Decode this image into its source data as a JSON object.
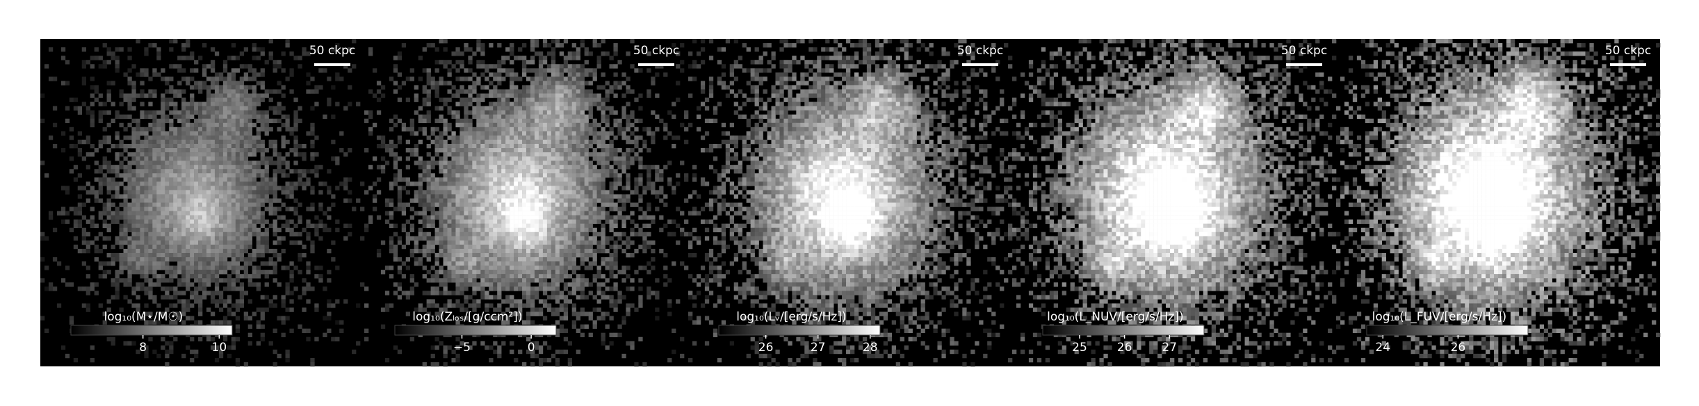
{
  "chart_data": [
    {
      "type": "image",
      "scale_bar": "50 ckpc",
      "colorbar": {
        "label": "log₁₀(M⋆/M☉)",
        "xlim": [
          6.11,
          10.34
        ],
        "xticks": [
          8,
          10
        ]
      }
    },
    {
      "type": "image",
      "scale_bar": "50 ckpc",
      "colorbar": {
        "label": "log₁₀(Zₗₒₛ/[g/ccm²])",
        "xlim": [
          -9.84,
          1.8
        ],
        "xticks": [
          {
            "value": -5,
            "label": "−5"
          },
          0
        ]
      }
    },
    {
      "type": "image",
      "scale_bar": "50 ckpc",
      "colorbar": {
        "label": "log₁₀(Lᵥ/[erg/s/Hz])",
        "xlim": [
          25.1,
          28.19
        ],
        "xticks": [
          26,
          27,
          28
        ]
      }
    },
    {
      "type": "image",
      "scale_bar": "50 ckpc",
      "colorbar": {
        "label": "log₁₀(L_NUV/[erg/s/Hz])",
        "xlim": [
          24.18,
          27.77
        ],
        "xticks": [
          25,
          26,
          27
        ]
      }
    },
    {
      "type": "image",
      "scale_bar": "50 ckpc",
      "colorbar": {
        "label": "log₁₀(L_FUV/[erg/s/Hz])",
        "xlim": [
          23.57,
          27.86
        ],
        "xticks": [
          24,
          26
        ]
      }
    }
  ]
}
